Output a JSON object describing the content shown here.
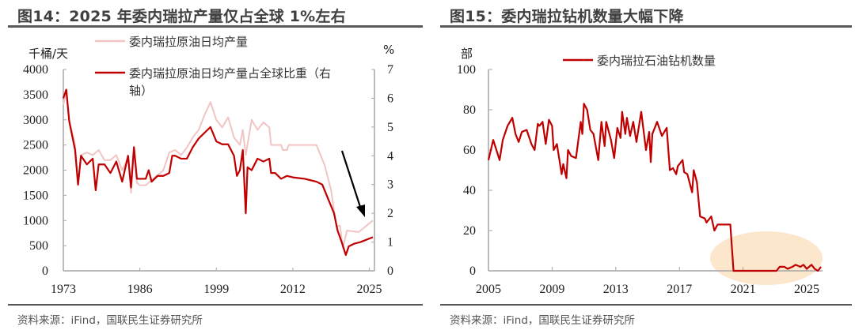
{
  "left": {
    "title": "图14：2025 年委内瑞拉产量仅占全球 1%左右",
    "source": "资料来源：iFind，国联民生证券研究所"
  },
  "right": {
    "title": "图15：委内瑞拉钻机数量大幅下降",
    "source": "资料来源：iFind，国联民生证券研究所"
  },
  "chart_data": [
    {
      "type": "line",
      "ylabel": "千桶/天",
      "y2label": "%",
      "xlim": [
        1973,
        2025.6
      ],
      "ylim": [
        0,
        4000
      ],
      "y2lim": [
        0,
        7
      ],
      "xticks": [
        "1973",
        "1986",
        "1999",
        "2012",
        "2025"
      ],
      "yticks": [
        "0",
        "500",
        "1000",
        "1500",
        "2000",
        "2500",
        "3000",
        "3500",
        "4000"
      ],
      "y2ticks": [
        "0",
        "1",
        "2",
        "3",
        "4",
        "5",
        "6",
        "7"
      ],
      "legend_position": "top",
      "annotation": "downward-arrow",
      "colors": {
        "production": "#f2c4c4",
        "share": "#c00000"
      },
      "series": [
        {
          "name": "委内瑞拉原油日均产量",
          "axis": "left",
          "x": [
            1973,
            1973.5,
            1974,
            1975,
            1975.5,
            1976,
            1977,
            1978,
            1979,
            1980,
            1981,
            1982,
            1983,
            1984,
            1984.5,
            1985,
            1985.5,
            1986,
            1987,
            1988,
            1989,
            1990,
            1991,
            1992,
            1993,
            1994,
            1995,
            1996,
            1997,
            1998,
            1999,
            2000,
            2001,
            2002,
            2003,
            2003.5,
            2004,
            2004.5,
            2005,
            2006,
            2007,
            2008,
            2008.3,
            2010,
            2010.3,
            2011,
            2011.3,
            2016,
            2017.4,
            2018.5,
            2019.4,
            2020,
            2020.5,
            2021.2,
            2023.2,
            2025.6
          ],
          "y": [
            3300,
            3550,
            3000,
            2500,
            1700,
            2300,
            2350,
            2300,
            2400,
            2200,
            2200,
            2300,
            2000,
            2250,
            1550,
            2400,
            1750,
            1700,
            1700,
            1800,
            1900,
            2000,
            2350,
            2400,
            2300,
            2450,
            2650,
            2800,
            3100,
            3350,
            3000,
            2850,
            3050,
            2650,
            2500,
            2800,
            2300,
            2650,
            3000,
            2800,
            2950,
            2850,
            2500,
            2500,
            2400,
            2400,
            2500,
            2500,
            2100,
            1600,
            880,
            900,
            460,
            800,
            770,
            1000
          ]
        },
        {
          "name": "委内瑞拉原油日均产量占全球比重（右轴）",
          "axis": "right",
          "x": [
            1973,
            1973.5,
            1974,
            1975,
            1975.5,
            1976,
            1977,
            1978,
            1978.5,
            1979,
            1980,
            1981,
            1982,
            1983,
            1984,
            1984.5,
            1985,
            1985.5,
            1986,
            1987,
            1987.5,
            1988,
            1989,
            1990,
            1991,
            1991.5,
            1992,
            1993,
            1994,
            1995,
            1996,
            1997,
            1998,
            1999,
            2000,
            2001,
            2002,
            2002.5,
            2003,
            2003.5,
            2004,
            2004.3,
            2005,
            2006,
            2007,
            2008,
            2008.3,
            2009,
            2010,
            2011,
            2012,
            2014,
            2015,
            2016,
            2017,
            2018,
            2019,
            2019.6,
            2020.3,
            2021,
            2021.5,
            2022.5,
            2023.5,
            2025.6
          ],
          "y": [
            6.0,
            6.3,
            5.2,
            4.2,
            3.0,
            4.0,
            3.7,
            3.9,
            2.8,
            3.7,
            3.7,
            3.4,
            3.8,
            3.1,
            4.0,
            2.9,
            4.3,
            3.2,
            3.2,
            3.2,
            3.5,
            3.1,
            3.3,
            3.3,
            3.4,
            4.0,
            4.0,
            3.9,
            3.9,
            4.3,
            4.6,
            4.8,
            5.0,
            4.5,
            4.4,
            4.4,
            4.0,
            3.3,
            3.5,
            4.2,
            2.0,
            3.6,
            3.5,
            3.9,
            3.8,
            3.9,
            3.4,
            3.4,
            3.2,
            3.3,
            3.25,
            3.2,
            3.15,
            3.1,
            3.0,
            2.5,
            2.0,
            1.4,
            1.0,
            0.55,
            0.85,
            0.95,
            1.0,
            1.17
          ]
        }
      ]
    },
    {
      "type": "line",
      "ylabel": "部",
      "xlim": [
        2005,
        2026
      ],
      "ylim": [
        0,
        100
      ],
      "xticks": [
        "2005",
        "2009",
        "2013",
        "2017",
        "2021",
        "2025"
      ],
      "yticks": [
        "0",
        "20",
        "40",
        "60",
        "80",
        "100"
      ],
      "legend_position": "top",
      "annotation": "highlight-ellipse",
      "colors": {
        "rigs": "#c00000",
        "highlight": "#fbe3c4"
      },
      "series": [
        {
          "name": "委内瑞拉石油钻机数量",
          "x": [
            2005.0,
            2005.3,
            2005.7,
            2005.9,
            2006.2,
            2006.5,
            2006.7,
            2006.9,
            2007.1,
            2007.4,
            2007.7,
            2007.9,
            2008.1,
            2008.2,
            2008.4,
            2008.6,
            2008.8,
            2009.0,
            2009.1,
            2009.3,
            2009.6,
            2009.7,
            2009.9,
            2010.0,
            2010.2,
            2010.5,
            2010.6,
            2010.8,
            2010.9,
            2011.0,
            2011.2,
            2011.4,
            2011.6,
            2011.9,
            2012.1,
            2012.3,
            2012.4,
            2012.7,
            2012.9,
            2013.1,
            2013.3,
            2013.4,
            2013.6,
            2013.7,
            2013.9,
            2014.1,
            2014.3,
            2014.6,
            2014.9,
            2015.1,
            2015.2,
            2015.3,
            2015.6,
            2015.9,
            2016.2,
            2016.4,
            2016.6,
            2016.8,
            2016.9,
            2017.2,
            2017.3,
            2017.5,
            2017.8,
            2017.9,
            2018.1,
            2018.3,
            2018.6,
            2018.7,
            2019.0,
            2019.2,
            2019.4,
            2020.2,
            2020.4,
            2023.1,
            2023.3,
            2023.6,
            2023.8,
            2024.1,
            2024.3,
            2024.6,
            2024.8,
            2025.0,
            2025.3,
            2025.5,
            2025.7,
            2025.9
          ],
          "y": [
            55,
            65,
            55,
            65,
            72,
            76,
            68,
            64,
            69,
            70,
            63,
            60,
            73,
            72,
            74,
            63,
            75,
            72,
            60,
            63,
            48,
            53,
            46,
            60,
            57,
            56,
            62,
            74,
            68,
            83,
            80,
            70,
            68,
            55,
            74,
            62,
            74,
            65,
            56,
            71,
            66,
            79,
            68,
            76,
            67,
            74,
            64,
            79,
            60,
            69,
            54,
            68,
            74,
            67,
            71,
            50,
            51,
            48,
            52,
            55,
            49,
            48,
            39,
            50,
            44,
            27,
            26,
            24,
            27,
            20,
            23,
            23,
            0,
            0,
            2,
            2,
            1,
            2,
            3,
            2,
            3,
            1,
            3,
            1,
            0,
            2
          ]
        }
      ]
    }
  ]
}
